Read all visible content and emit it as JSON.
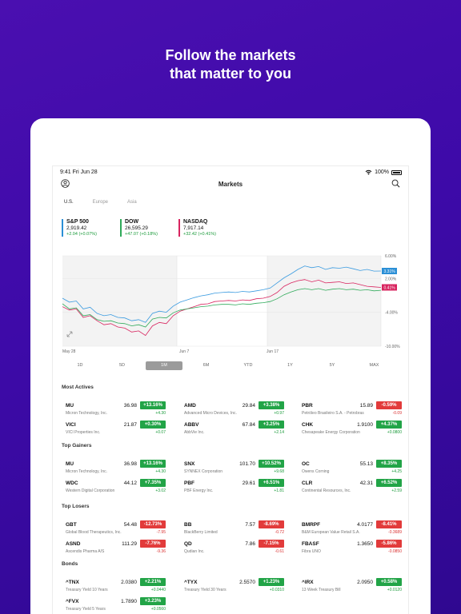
{
  "headline": {
    "line1": "Follow the markets",
    "line2": "that matter to you"
  },
  "status": {
    "time": "9:41  Fri Jun 28",
    "battery": "100%"
  },
  "nav": {
    "title": "Markets"
  },
  "regions": [
    "U.S.",
    "Europe",
    "Asia"
  ],
  "indices": [
    {
      "symbol": "S&P 500",
      "value": "2,919.42",
      "change": "+2.04 (+0.07%)",
      "color": "#2b8fd6"
    },
    {
      "symbol": "DOW",
      "value": "26,595.29",
      "change": "+47.07 (+0.18%)",
      "color": "#2faa5a"
    },
    {
      "symbol": "NASDAQ",
      "value": "7,917.14",
      "change": "+32.42 (+0.41%)",
      "color": "#d8245f"
    }
  ],
  "chart_data": {
    "type": "line",
    "x_labels": [
      "May 28",
      "Jun 7",
      "Jun 17"
    ],
    "y_ticks": [
      "6.00%",
      "2.00%",
      "-4.00%",
      "-10.00%"
    ],
    "ylim": [
      -10,
      6
    ],
    "end_labels": [
      "3.31%",
      "0.41%"
    ],
    "series": [
      {
        "name": "S&P 500",
        "color": "#3a9be0",
        "values": [
          -1.5,
          -2.2,
          -2.0,
          -3.4,
          -3.1,
          -4.2,
          -4.6,
          -4.4,
          -4.9,
          -5.0,
          -5.5,
          -5.3,
          -5.8,
          -4.2,
          -3.8,
          -4.0,
          -2.9,
          -2.2,
          -1.8,
          -1.4,
          -1.1,
          -0.9,
          -0.6,
          -0.5,
          -0.4,
          -0.5,
          -0.3,
          -0.4,
          -0.2,
          0.0,
          0.3,
          1.2,
          2.1,
          2.8,
          3.6,
          4.2,
          3.9,
          4.1,
          3.6,
          3.9,
          3.8,
          4.0,
          3.7,
          3.4,
          3.6,
          3.3,
          3.31
        ]
      },
      {
        "name": "NASDAQ",
        "color": "#d8245f",
        "values": [
          -3.0,
          -3.6,
          -3.4,
          -4.9,
          -4.6,
          -5.5,
          -6.2,
          -6.0,
          -6.6,
          -6.8,
          -7.5,
          -7.3,
          -8.1,
          -6.4,
          -5.8,
          -6.0,
          -4.6,
          -3.8,
          -3.4,
          -3.0,
          -2.6,
          -2.5,
          -2.1,
          -2.0,
          -1.9,
          -2.0,
          -1.8,
          -1.9,
          -1.6,
          -1.5,
          -1.2,
          -0.5,
          0.6,
          1.2,
          1.6,
          1.8,
          1.4,
          1.7,
          1.2,
          1.3,
          1.4,
          1.1,
          1.2,
          0.9,
          0.6,
          0.5,
          0.41
        ]
      },
      {
        "name": "DOW",
        "color": "#2faa5a",
        "values": [
          -2.5,
          -3.4,
          -3.2,
          -4.6,
          -4.4,
          -5.3,
          -5.6,
          -5.5,
          -5.9,
          -6.0,
          -6.4,
          -6.2,
          -6.6,
          -5.2,
          -4.9,
          -5.0,
          -4.1,
          -3.6,
          -3.4,
          -3.2,
          -3.0,
          -2.9,
          -2.7,
          -2.6,
          -2.6,
          -2.7,
          -2.5,
          -2.6,
          -2.4,
          -2.3,
          -2.1,
          -1.6,
          -0.9,
          -0.4,
          0.0,
          0.2,
          0.0,
          0.2,
          -0.1,
          0.1,
          0.2,
          0.0,
          0.1,
          -0.1,
          0.0,
          -0.2,
          -0.1
        ]
      }
    ]
  },
  "ranges": [
    "1D",
    "5D",
    "1M",
    "6M",
    "YTD",
    "1Y",
    "5Y",
    "MAX"
  ],
  "sections": [
    {
      "title": "Most Actives",
      "cards": [
        {
          "symbol": "MU",
          "name": "Micron Technology, Inc.",
          "price": "36.98",
          "pct": "+13.16%",
          "abs": "+4.30",
          "dir": "up"
        },
        {
          "symbol": "AMD",
          "name": "Advanced Micro Devices, Inc.",
          "price": "29.84",
          "pct": "+3.38%",
          "abs": "+0.97",
          "dir": "up"
        },
        {
          "symbol": "PBR",
          "name": "Petróleo Brasileiro S.A. - Petrobras",
          "price": "15.89",
          "pct": "-0.59%",
          "abs": "-0.09",
          "dir": "down"
        },
        {
          "symbol": "VICI",
          "name": "VICI Properties Inc.",
          "price": "21.87",
          "pct": "+0.30%",
          "abs": "+0.07",
          "dir": "up"
        },
        {
          "symbol": "ABBV",
          "name": "AbbVie Inc.",
          "price": "67.84",
          "pct": "+3.25%",
          "abs": "+2.14",
          "dir": "up"
        },
        {
          "symbol": "CHK",
          "name": "Chesapeake Energy Corporation",
          "price": "1.9100",
          "pct": "+4.37%",
          "abs": "+0.0800",
          "dir": "up"
        }
      ]
    },
    {
      "title": "Top Gainers",
      "cards": [
        {
          "symbol": "MU",
          "name": "Micron Technology, Inc.",
          "price": "36.98",
          "pct": "+13.16%",
          "abs": "+4.30",
          "dir": "up"
        },
        {
          "symbol": "SNX",
          "name": "SYNNEX Corporation",
          "price": "101.70",
          "pct": "+10.52%",
          "abs": "+9.68",
          "dir": "up"
        },
        {
          "symbol": "OC",
          "name": "Owens Corning",
          "price": "55.13",
          "pct": "+8.35%",
          "abs": "+4.25",
          "dir": "up"
        },
        {
          "symbol": "WDC",
          "name": "Western Digital Corporation",
          "price": "44.12",
          "pct": "+7.35%",
          "abs": "+3.02",
          "dir": "up"
        },
        {
          "symbol": "PBF",
          "name": "PBF Energy Inc.",
          "price": "29.61",
          "pct": "+6.51%",
          "abs": "+1.81",
          "dir": "up"
        },
        {
          "symbol": "CLR",
          "name": "Continental Resources, Inc.",
          "price": "42.31",
          "pct": "+6.52%",
          "abs": "+2.59",
          "dir": "up"
        }
      ]
    },
    {
      "title": "Top Losers",
      "cards": [
        {
          "symbol": "GBT",
          "name": "Global Blood Therapeutics, Inc.",
          "price": "54.48",
          "pct": "-12.73%",
          "abs": "-7.95",
          "dir": "down"
        },
        {
          "symbol": "BB",
          "name": "BlackBerry Limited",
          "price": "7.57",
          "pct": "-8.69%",
          "abs": "-0.72",
          "dir": "down"
        },
        {
          "symbol": "BMRPF",
          "name": "B&M European Value Retail S.A.",
          "price": "4.0177",
          "pct": "-8.41%",
          "abs": "-0.3689",
          "dir": "down"
        },
        {
          "symbol": "ASND",
          "name": "Ascendis Pharma A/S",
          "price": "111.29",
          "pct": "-7.76%",
          "abs": "-9.36",
          "dir": "down"
        },
        {
          "symbol": "QD",
          "name": "Qudian Inc.",
          "price": "7.86",
          "pct": "-7.15%",
          "abs": "-0.61",
          "dir": "down"
        },
        {
          "symbol": "FBASF",
          "name": "Fibra UNO",
          "price": "1.3650",
          "pct": "-5.86%",
          "abs": "-0.0850",
          "dir": "down"
        }
      ]
    },
    {
      "title": "Bonds",
      "cards": [
        {
          "symbol": "^TNX",
          "name": "Treasury Yield 10 Years",
          "price": "2.0380",
          "pct": "+2.21%",
          "abs": "+0.0440",
          "dir": "up"
        },
        {
          "symbol": "^TYX",
          "name": "Treasury Yield 30 Years",
          "price": "2.5570",
          "pct": "+1.23%",
          "abs": "+0.0310",
          "dir": "up"
        },
        {
          "symbol": "^IRX",
          "name": "13 Week Treasury Bill",
          "price": "2.0950",
          "pct": "+0.58%",
          "abs": "+0.0120",
          "dir": "up"
        },
        {
          "symbol": "^FVX",
          "name": "Treasury Yield 5 Years",
          "price": "1.7890",
          "pct": "+3.23%",
          "abs": "+0.0560",
          "dir": "up"
        }
      ]
    }
  ]
}
